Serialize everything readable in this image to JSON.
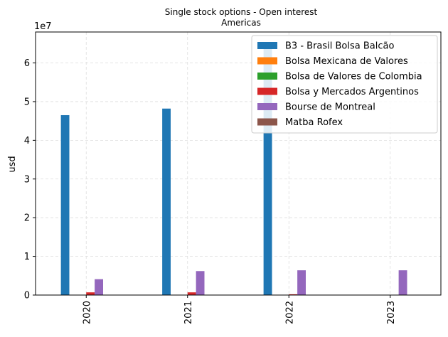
{
  "chart_data": {
    "type": "bar",
    "title": "Single stock options - Open interest",
    "subtitle": "Americas",
    "xlabel": "",
    "ylabel": "usd",
    "y_multiplier_label": "1e7",
    "y_scale": 10000000,
    "ylim": [
      0,
      68000000
    ],
    "yticks": [
      0,
      10000000,
      20000000,
      30000000,
      40000000,
      50000000,
      60000000
    ],
    "ytick_labels": [
      "0",
      "1",
      "2",
      "3",
      "4",
      "5",
      "6"
    ],
    "categories": [
      "2020",
      "2021",
      "2022",
      "2023"
    ],
    "grid": true,
    "legend_position": "top-right",
    "series": [
      {
        "name": "B3 - Brasil Bolsa Balcão",
        "color": "#1f77b4",
        "values": [
          46500000,
          48200000,
          65000000,
          0
        ]
      },
      {
        "name": "Bolsa Mexicana de Valores",
        "color": "#ff7f0e",
        "values": [
          0,
          0,
          0,
          0
        ]
      },
      {
        "name": "Bolsa de Valores de Colombia",
        "color": "#2ca02c",
        "values": [
          0,
          0,
          0,
          0
        ]
      },
      {
        "name": "Bolsa y Mercados Argentinos",
        "color": "#d62728",
        "values": [
          700000,
          700000,
          200000,
          0
        ]
      },
      {
        "name": "Bourse de Montreal",
        "color": "#9467bd",
        "values": [
          4100000,
          6200000,
          6400000,
          6400000
        ]
      },
      {
        "name": "Matba Rofex",
        "color": "#8c564b",
        "values": [
          0,
          0,
          0,
          0
        ]
      }
    ]
  }
}
